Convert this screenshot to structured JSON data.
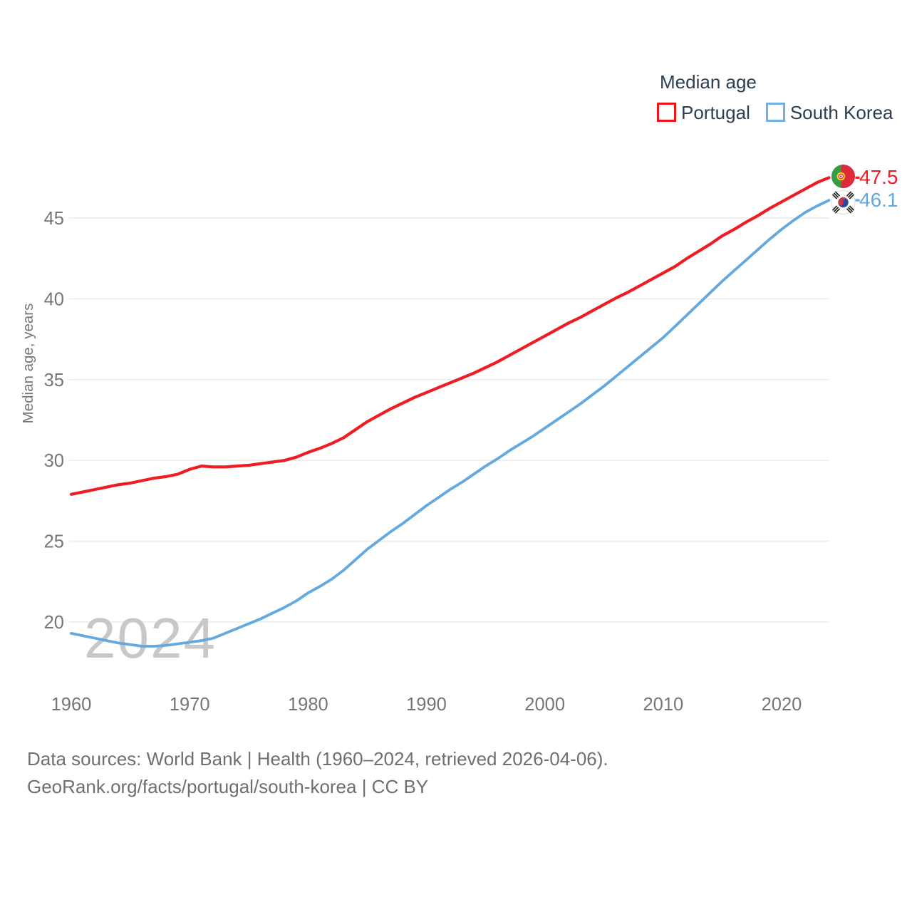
{
  "legend": {
    "title": "Median age",
    "items": [
      {
        "label": "Portugal",
        "color": "#ee1418"
      },
      {
        "label": "South Korea",
        "color": "#6cb2e2"
      }
    ]
  },
  "chart_data": {
    "type": "line",
    "title": "Median age",
    "xlabel": "",
    "ylabel": "Median age, years",
    "x_ticks": [
      1960,
      1970,
      1980,
      1990,
      2000,
      2010,
      2020
    ],
    "y_ticks": [
      20,
      25,
      30,
      35,
      40,
      45
    ],
    "xlim": [
      1960,
      2024
    ],
    "ylim": [
      18,
      48.5
    ],
    "grid": "horizontal",
    "legend_position": "top-right",
    "x": [
      1960,
      1961,
      1962,
      1963,
      1964,
      1965,
      1966,
      1967,
      1968,
      1969,
      1970,
      1971,
      1972,
      1973,
      1974,
      1975,
      1976,
      1977,
      1978,
      1979,
      1980,
      1981,
      1982,
      1983,
      1984,
      1985,
      1986,
      1987,
      1988,
      1989,
      1990,
      1991,
      1992,
      1993,
      1994,
      1995,
      1996,
      1997,
      1998,
      1999,
      2000,
      2001,
      2002,
      2003,
      2004,
      2005,
      2006,
      2007,
      2008,
      2009,
      2010,
      2011,
      2012,
      2013,
      2014,
      2015,
      2016,
      2017,
      2018,
      2019,
      2020,
      2021,
      2022,
      2023,
      2024
    ],
    "series": [
      {
        "name": "Portugal",
        "color": "#ee1c23",
        "end_label": "47.5",
        "values": [
          27.9,
          28.05,
          28.2,
          28.35,
          28.5,
          28.6,
          28.75,
          28.9,
          29.0,
          29.15,
          29.45,
          29.65,
          29.6,
          29.6,
          29.65,
          29.7,
          29.8,
          29.9,
          30.0,
          30.2,
          30.5,
          30.75,
          31.05,
          31.4,
          31.9,
          32.4,
          32.8,
          33.2,
          33.55,
          33.9,
          34.2,
          34.5,
          34.8,
          35.1,
          35.4,
          35.75,
          36.1,
          36.5,
          36.9,
          37.3,
          37.7,
          38.1,
          38.5,
          38.85,
          39.25,
          39.65,
          40.05,
          40.4,
          40.8,
          41.2,
          41.6,
          42.0,
          42.5,
          42.95,
          43.4,
          43.9,
          44.3,
          44.75,
          45.15,
          45.6,
          46.0,
          46.4,
          46.8,
          47.2,
          47.5
        ]
      },
      {
        "name": "South Korea",
        "color": "#63a9e0",
        "end_label": "46.1",
        "values": [
          19.3,
          19.15,
          19.0,
          18.85,
          18.7,
          18.6,
          18.5,
          18.5,
          18.55,
          18.65,
          18.75,
          18.85,
          19.0,
          19.3,
          19.6,
          19.9,
          20.2,
          20.55,
          20.9,
          21.3,
          21.8,
          22.2,
          22.65,
          23.2,
          23.85,
          24.5,
          25.05,
          25.6,
          26.1,
          26.65,
          27.2,
          27.7,
          28.2,
          28.65,
          29.15,
          29.65,
          30.1,
          30.6,
          31.05,
          31.5,
          32.0,
          32.5,
          33.0,
          33.5,
          34.05,
          34.6,
          35.2,
          35.8,
          36.4,
          37.0,
          37.6,
          38.3,
          39.0,
          39.7,
          40.4,
          41.1,
          41.75,
          42.4,
          43.05,
          43.7,
          44.3,
          44.85,
          45.35,
          45.75,
          46.1
        ]
      }
    ]
  },
  "watermark": "2024",
  "footer": {
    "line1": "Data sources: World Bank | Health (1960–2024, retrieved 2026-04-06).",
    "line2": "GeoRank.org/facts/portugal/south-korea | CC BY"
  },
  "colors": {
    "axis_text": "#767676",
    "gridline": "#ebebeb",
    "watermark": "#c8c8c8",
    "legend_text": "#2c3e50",
    "footer_text": "#6f6f6f"
  }
}
